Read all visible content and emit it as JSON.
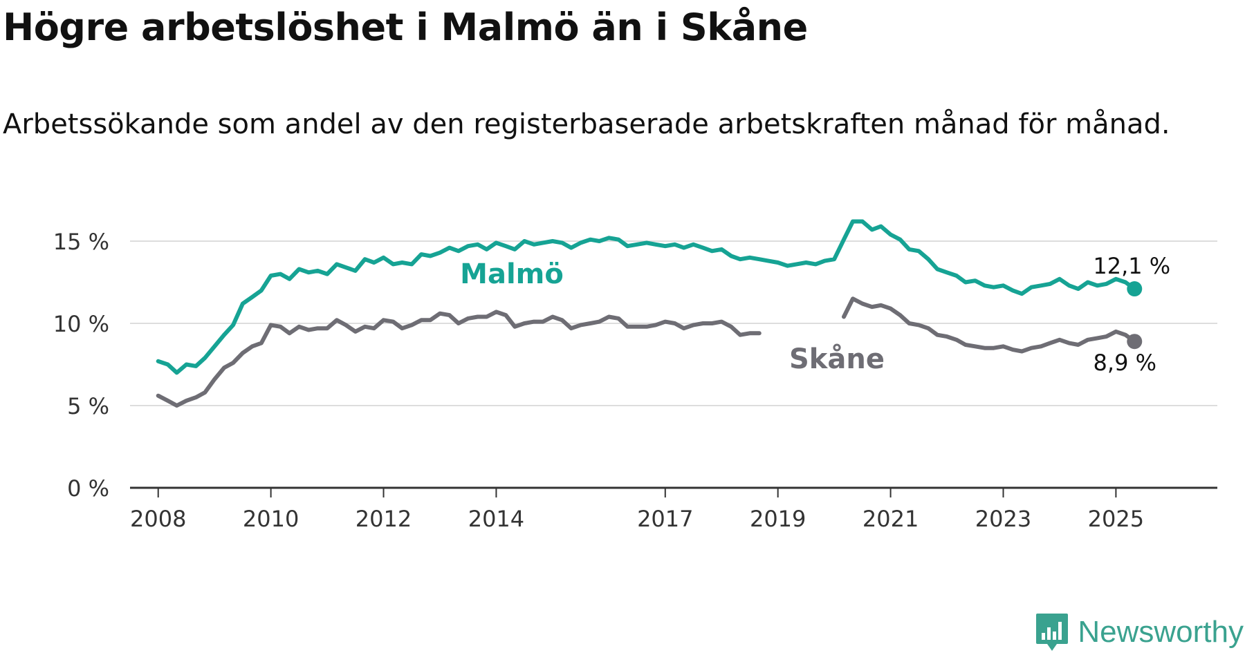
{
  "chart_data": {
    "type": "line",
    "title": "Högre arbetslöshet i Malmö än i Skåne",
    "subtitle": "Arbetssökande som andel av den registerbaserade arbetskraften månad för månad.",
    "xlabel": "",
    "ylabel": "",
    "xlim": [
      2007.5,
      2026.8
    ],
    "ylim": [
      0,
      15
    ],
    "grid": true,
    "x_ticks": [
      {
        "value": 2008,
        "label": "2008"
      },
      {
        "value": 2010,
        "label": "2010"
      },
      {
        "value": 2012,
        "label": "2012"
      },
      {
        "value": 2014,
        "label": "2014"
      },
      {
        "value": 2017,
        "label": "2017"
      },
      {
        "value": 2019,
        "label": "2019"
      },
      {
        "value": 2021,
        "label": "2021"
      },
      {
        "value": 2023,
        "label": "2023"
      },
      {
        "value": 2025,
        "label": "2025"
      }
    ],
    "y_ticks": [
      {
        "value": 0,
        "label": "0 %"
      },
      {
        "value": 5,
        "label": "5 %"
      },
      {
        "value": 10,
        "label": "10 %"
      },
      {
        "value": 15,
        "label": "15 %"
      }
    ],
    "series": [
      {
        "name": "Malmö",
        "color": "#16a394",
        "end_label": "12,1 %",
        "points": [
          [
            2008.0,
            7.7
          ],
          [
            2008.17,
            7.5
          ],
          [
            2008.33,
            7.0
          ],
          [
            2008.5,
            7.5
          ],
          [
            2008.67,
            7.4
          ],
          [
            2008.83,
            7.9
          ],
          [
            2009.0,
            8.6
          ],
          [
            2009.17,
            9.3
          ],
          [
            2009.33,
            9.9
          ],
          [
            2009.5,
            11.2
          ],
          [
            2009.67,
            11.6
          ],
          [
            2009.83,
            12.0
          ],
          [
            2010.0,
            12.9
          ],
          [
            2010.17,
            13.0
          ],
          [
            2010.33,
            12.7
          ],
          [
            2010.5,
            13.3
          ],
          [
            2010.67,
            13.1
          ],
          [
            2010.83,
            13.2
          ],
          [
            2011.0,
            13.0
          ],
          [
            2011.17,
            13.6
          ],
          [
            2011.33,
            13.4
          ],
          [
            2011.5,
            13.2
          ],
          [
            2011.67,
            13.9
          ],
          [
            2011.83,
            13.7
          ],
          [
            2012.0,
            14.0
          ],
          [
            2012.17,
            13.6
          ],
          [
            2012.33,
            13.7
          ],
          [
            2012.5,
            13.6
          ],
          [
            2012.67,
            14.2
          ],
          [
            2012.83,
            14.1
          ],
          [
            2013.0,
            14.3
          ],
          [
            2013.17,
            14.6
          ],
          [
            2013.33,
            14.4
          ],
          [
            2013.5,
            14.7
          ],
          [
            2013.67,
            14.8
          ],
          [
            2013.83,
            14.5
          ],
          [
            2014.0,
            14.9
          ],
          [
            2014.17,
            14.7
          ],
          [
            2014.33,
            14.5
          ],
          [
            2014.5,
            15.0
          ],
          [
            2014.67,
            14.8
          ],
          [
            2014.83,
            14.9
          ],
          [
            2015.0,
            15.0
          ],
          [
            2015.17,
            14.9
          ],
          [
            2015.33,
            14.6
          ],
          [
            2015.5,
            14.9
          ],
          [
            2015.67,
            15.1
          ],
          [
            2015.83,
            15.0
          ],
          [
            2016.0,
            15.2
          ],
          [
            2016.17,
            15.1
          ],
          [
            2016.33,
            14.7
          ],
          [
            2016.5,
            14.8
          ],
          [
            2016.67,
            14.9
          ],
          [
            2016.83,
            14.8
          ],
          [
            2017.0,
            14.7
          ],
          [
            2017.17,
            14.8
          ],
          [
            2017.33,
            14.6
          ],
          [
            2017.5,
            14.8
          ],
          [
            2017.67,
            14.6
          ],
          [
            2017.83,
            14.4
          ],
          [
            2018.0,
            14.5
          ],
          [
            2018.17,
            14.1
          ],
          [
            2018.33,
            13.9
          ],
          [
            2018.5,
            14.0
          ],
          [
            2018.67,
            13.9
          ],
          [
            2018.83,
            13.8
          ],
          [
            2019.0,
            13.7
          ],
          [
            2019.17,
            13.5
          ],
          [
            2019.33,
            13.6
          ],
          [
            2019.5,
            13.7
          ],
          [
            2019.67,
            13.6
          ],
          [
            2019.83,
            13.8
          ],
          [
            2020.0,
            13.9
          ],
          [
            2020.17,
            15.1
          ],
          [
            2020.33,
            16.2
          ],
          [
            2020.5,
            16.2
          ],
          [
            2020.67,
            15.7
          ],
          [
            2020.83,
            15.9
          ],
          [
            2021.0,
            15.4
          ],
          [
            2021.17,
            15.1
          ],
          [
            2021.33,
            14.5
          ],
          [
            2021.5,
            14.4
          ],
          [
            2021.67,
            13.9
          ],
          [
            2021.83,
            13.3
          ],
          [
            2022.0,
            13.1
          ],
          [
            2022.17,
            12.9
          ],
          [
            2022.33,
            12.5
          ],
          [
            2022.5,
            12.6
          ],
          [
            2022.67,
            12.3
          ],
          [
            2022.83,
            12.2
          ],
          [
            2023.0,
            12.3
          ],
          [
            2023.17,
            12.0
          ],
          [
            2023.33,
            11.8
          ],
          [
            2023.5,
            12.2
          ],
          [
            2023.67,
            12.3
          ],
          [
            2023.83,
            12.4
          ],
          [
            2024.0,
            12.7
          ],
          [
            2024.17,
            12.3
          ],
          [
            2024.33,
            12.1
          ],
          [
            2024.5,
            12.5
          ],
          [
            2024.67,
            12.3
          ],
          [
            2024.83,
            12.4
          ],
          [
            2025.0,
            12.7
          ],
          [
            2025.17,
            12.5
          ],
          [
            2025.33,
            12.1
          ]
        ]
      },
      {
        "name": "Skåne",
        "color": "#6e6d74",
        "end_label": "8,9 %",
        "points": [
          [
            2008.0,
            5.6
          ],
          [
            2008.17,
            5.3
          ],
          [
            2008.33,
            5.0
          ],
          [
            2008.5,
            5.3
          ],
          [
            2008.67,
            5.5
          ],
          [
            2008.83,
            5.8
          ],
          [
            2009.0,
            6.6
          ],
          [
            2009.17,
            7.3
          ],
          [
            2009.33,
            7.6
          ],
          [
            2009.5,
            8.2
          ],
          [
            2009.67,
            8.6
          ],
          [
            2009.83,
            8.8
          ],
          [
            2010.0,
            9.9
          ],
          [
            2010.17,
            9.8
          ],
          [
            2010.33,
            9.4
          ],
          [
            2010.5,
            9.8
          ],
          [
            2010.67,
            9.6
          ],
          [
            2010.83,
            9.7
          ],
          [
            2011.0,
            9.7
          ],
          [
            2011.17,
            10.2
          ],
          [
            2011.33,
            9.9
          ],
          [
            2011.5,
            9.5
          ],
          [
            2011.67,
            9.8
          ],
          [
            2011.83,
            9.7
          ],
          [
            2012.0,
            10.2
          ],
          [
            2012.17,
            10.1
          ],
          [
            2012.33,
            9.7
          ],
          [
            2012.5,
            9.9
          ],
          [
            2012.67,
            10.2
          ],
          [
            2012.83,
            10.2
          ],
          [
            2013.0,
            10.6
          ],
          [
            2013.17,
            10.5
          ],
          [
            2013.33,
            10.0
          ],
          [
            2013.5,
            10.3
          ],
          [
            2013.67,
            10.4
          ],
          [
            2013.83,
            10.4
          ],
          [
            2014.0,
            10.7
          ],
          [
            2014.17,
            10.5
          ],
          [
            2014.33,
            9.8
          ],
          [
            2014.5,
            10.0
          ],
          [
            2014.67,
            10.1
          ],
          [
            2014.83,
            10.1
          ],
          [
            2015.0,
            10.4
          ],
          [
            2015.17,
            10.2
          ],
          [
            2015.33,
            9.7
          ],
          [
            2015.5,
            9.9
          ],
          [
            2015.67,
            10.0
          ],
          [
            2015.83,
            10.1
          ],
          [
            2016.0,
            10.4
          ],
          [
            2016.17,
            10.3
          ],
          [
            2016.33,
            9.8
          ],
          [
            2016.5,
            9.8
          ],
          [
            2016.67,
            9.8
          ],
          [
            2016.83,
            9.9
          ],
          [
            2017.0,
            10.1
          ],
          [
            2017.17,
            10.0
          ],
          [
            2017.33,
            9.7
          ],
          [
            2017.5,
            9.9
          ],
          [
            2017.67,
            10.0
          ],
          [
            2017.83,
            10.0
          ],
          [
            2018.0,
            10.1
          ],
          [
            2018.17,
            9.8
          ],
          [
            2018.33,
            9.3
          ],
          [
            2018.5,
            9.4
          ],
          [
            2018.67,
            9.4
          ],
          [
            2020.17,
            10.4
          ],
          [
            2020.33,
            11.5
          ],
          [
            2020.5,
            11.2
          ],
          [
            2020.67,
            11.0
          ],
          [
            2020.83,
            11.1
          ],
          [
            2021.0,
            10.9
          ],
          [
            2021.17,
            10.5
          ],
          [
            2021.33,
            10.0
          ],
          [
            2021.5,
            9.9
          ],
          [
            2021.67,
            9.7
          ],
          [
            2021.83,
            9.3
          ],
          [
            2022.0,
            9.2
          ],
          [
            2022.17,
            9.0
          ],
          [
            2022.33,
            8.7
          ],
          [
            2022.5,
            8.6
          ],
          [
            2022.67,
            8.5
          ],
          [
            2022.83,
            8.5
          ],
          [
            2023.0,
            8.6
          ],
          [
            2023.17,
            8.4
          ],
          [
            2023.33,
            8.3
          ],
          [
            2023.5,
            8.5
          ],
          [
            2023.67,
            8.6
          ],
          [
            2023.83,
            8.8
          ],
          [
            2024.0,
            9.0
          ],
          [
            2024.17,
            8.8
          ],
          [
            2024.33,
            8.7
          ],
          [
            2024.5,
            9.0
          ],
          [
            2024.67,
            9.1
          ],
          [
            2024.83,
            9.2
          ],
          [
            2025.0,
            9.5
          ],
          [
            2025.17,
            9.3
          ],
          [
            2025.33,
            8.9
          ]
        ]
      }
    ]
  },
  "branding": {
    "name": "Newsworthy",
    "logo_icon": "newsworthy-logo-icon",
    "color": "#3aa28f"
  },
  "style": {
    "grid_color": "#dddddd",
    "axis_color": "#333333",
    "label_color": "#333333"
  }
}
